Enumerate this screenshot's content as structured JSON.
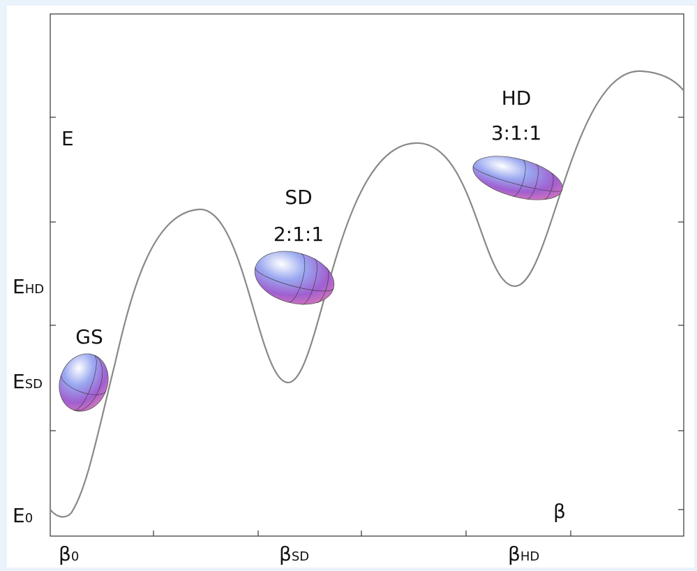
{
  "axis_labels": {
    "y": [
      {
        "base": "E",
        "sub": "HD"
      },
      {
        "base": "E",
        "sub": "SD"
      },
      {
        "base": "E",
        "sub": "0"
      }
    ],
    "y_title": "E",
    "x": [
      {
        "base": "β",
        "sub": "0"
      },
      {
        "base": "β",
        "sub": "SD"
      },
      {
        "base": "β",
        "sub": "HD"
      }
    ],
    "x_title": "β"
  },
  "shapes": [
    {
      "name": "GS"
    },
    {
      "name": "SD",
      "ratio": "2:1:1"
    },
    {
      "name": "HD",
      "ratio": "3:1:1"
    }
  ]
}
